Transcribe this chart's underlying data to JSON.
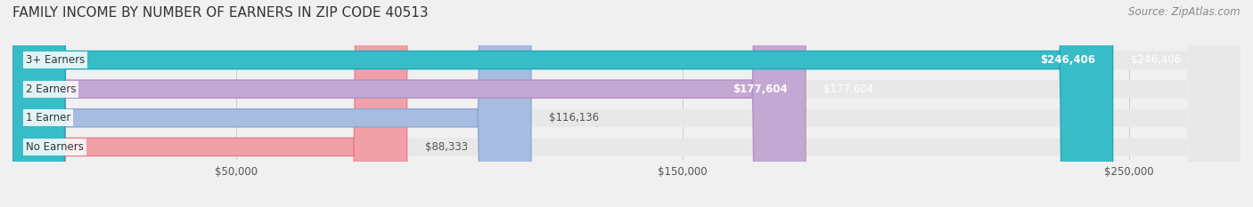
{
  "title": "FAMILY INCOME BY NUMBER OF EARNERS IN ZIP CODE 40513",
  "source": "Source: ZipAtlas.com",
  "categories": [
    "No Earners",
    "1 Earner",
    "2 Earners",
    "3+ Earners"
  ],
  "values": [
    88333,
    116136,
    177604,
    246406
  ],
  "value_labels": [
    "$88,333",
    "$116,136",
    "$177,604",
    "$246,406"
  ],
  "bar_colors": [
    "#f2a0a8",
    "#a8bce0",
    "#c4a8d4",
    "#38bcc8"
  ],
  "bar_edge_colors": [
    "#e88090",
    "#8aaad0",
    "#b090c4",
    "#20a8b8"
  ],
  "label_bg_color": "#ffffff",
  "label_colors": [
    "#555555",
    "#555555",
    "#ffffff",
    "#ffffff"
  ],
  "tick_labels": [
    "$50,000",
    "$150,000",
    "$250,000"
  ],
  "tick_values": [
    50000,
    150000,
    250000
  ],
  "xmin": 0,
  "xmax": 275000,
  "background_color": "#f0f0f0",
  "bar_bg_color": "#e8e8e8",
  "title_fontsize": 11,
  "source_fontsize": 8.5
}
